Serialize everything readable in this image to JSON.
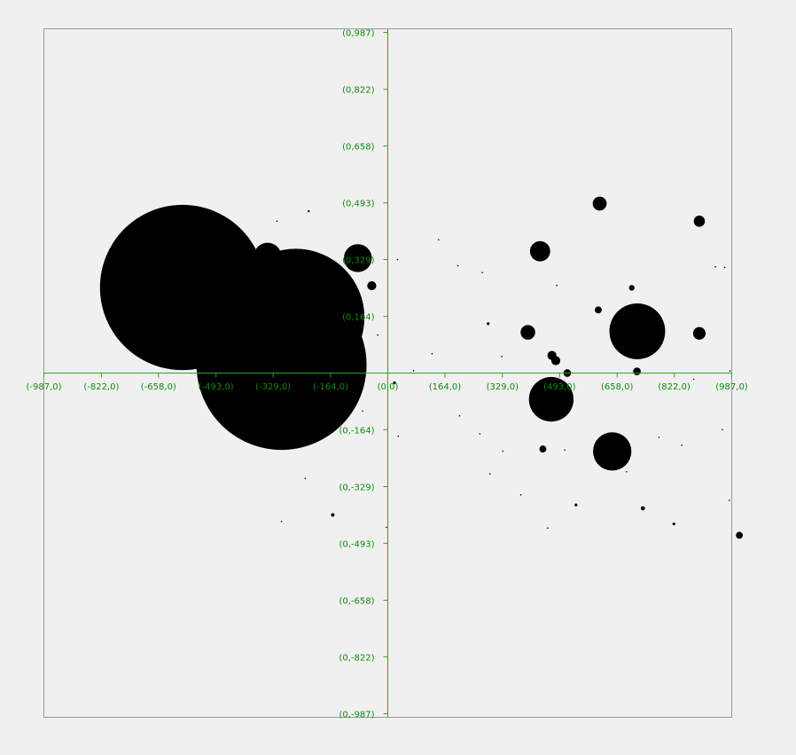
{
  "chart_data": {
    "type": "scatter",
    "subtype": "bubble",
    "title": "",
    "xlabel": "",
    "ylabel": "",
    "xlim": [
      -987,
      987
    ],
    "ylim": [
      -987,
      987
    ],
    "grid": false,
    "legend": "none",
    "colors": {
      "background": "#f0f0f0",
      "frame": "#999999",
      "axis": "#22aa22",
      "tick_label": "#118811",
      "marker": "#000000"
    },
    "x_tick_labels": [
      {
        "value": -987,
        "label": "(-987,0)"
      },
      {
        "value": -822,
        "label": "(-822,0)"
      },
      {
        "value": -658,
        "label": "(-658,0)"
      },
      {
        "value": -493,
        "label": "(-493,0)"
      },
      {
        "value": -329,
        "label": "(-329,0)"
      },
      {
        "value": -164,
        "label": "(-164,0)"
      },
      {
        "value": 0,
        "label": "(0,0)"
      },
      {
        "value": 164,
        "label": "(164,0)"
      },
      {
        "value": 329,
        "label": "(329,0)"
      },
      {
        "value": 493,
        "label": "(493,0)"
      },
      {
        "value": 658,
        "label": "(658,0)"
      },
      {
        "value": 822,
        "label": "(822,0)"
      },
      {
        "value": 987,
        "label": "(987,0)"
      }
    ],
    "y_tick_labels": [
      {
        "value": 987,
        "label": "(0,987)"
      },
      {
        "value": 822,
        "label": "(0,822)"
      },
      {
        "value": 658,
        "label": "(0,658)"
      },
      {
        "value": 493,
        "label": "(0,493)"
      },
      {
        "value": 329,
        "label": "(0,329)"
      },
      {
        "value": 164,
        "label": "(0,164)"
      },
      {
        "value": -164,
        "label": "(0,-164)"
      },
      {
        "value": -329,
        "label": "(0,-329)"
      },
      {
        "value": -493,
        "label": "(0,-493)"
      },
      {
        "value": -658,
        "label": "(0,-658)"
      },
      {
        "value": -822,
        "label": "(0,-822)"
      },
      {
        "value": -987,
        "label": "(0,-987)"
      }
    ],
    "points": [
      {
        "x": -589,
        "y": 248,
        "r": 237
      },
      {
        "x": -305,
        "y": 24,
        "r": 244
      },
      {
        "x": -264,
        "y": 161,
        "r": 197
      },
      {
        "x": -345,
        "y": 337,
        "r": 40
      },
      {
        "x": -86,
        "y": 333,
        "r": 40
      },
      {
        "x": -46,
        "y": 253,
        "r": 13
      },
      {
        "x": 437,
        "y": 353,
        "r": 29
      },
      {
        "x": 608,
        "y": 491,
        "r": 20
      },
      {
        "x": 716,
        "y": 121,
        "r": 80
      },
      {
        "x": 402,
        "y": 118,
        "r": 21
      },
      {
        "x": 471,
        "y": 51,
        "r": 13
      },
      {
        "x": 482,
        "y": 36,
        "r": 13
      },
      {
        "x": 515,
        "y": 0,
        "r": 11
      },
      {
        "x": 469,
        "y": -76,
        "r": 64
      },
      {
        "x": 644,
        "y": -227,
        "r": 55
      },
      {
        "x": 894,
        "y": 440,
        "r": 16
      },
      {
        "x": 897,
        "y": 440,
        "r": 9
      },
      {
        "x": 894,
        "y": 115,
        "r": 18
      },
      {
        "x": 700,
        "y": 247,
        "r": 8
      },
      {
        "x": 604,
        "y": 183,
        "r": 10
      },
      {
        "x": 715,
        "y": 5,
        "r": 11
      },
      {
        "x": 445,
        "y": -220,
        "r": 10
      },
      {
        "x": 1009,
        "y": -470,
        "r": 10
      },
      {
        "x": -158,
        "y": -411,
        "r": 5
      },
      {
        "x": 732,
        "y": -392,
        "r": 6
      },
      {
        "x": 540,
        "y": -382,
        "r": 4
      },
      {
        "x": 821,
        "y": -437,
        "r": 4
      },
      {
        "x": 288,
        "y": 143,
        "r": 4
      },
      {
        "x": 19,
        "y": -28,
        "r": 4
      },
      {
        "x": -227,
        "y": 469,
        "r": 3
      },
      {
        "x": -318,
        "y": 440,
        "r": 2
      },
      {
        "x": -72,
        "y": -110,
        "r": 2
      },
      {
        "x": -29,
        "y": 110,
        "r": 2
      },
      {
        "x": 28,
        "y": 329,
        "r": 2
      },
      {
        "x": 146,
        "y": 386,
        "r": 2
      },
      {
        "x": 201,
        "y": 311,
        "r": 2
      },
      {
        "x": 271,
        "y": 291,
        "r": 2
      },
      {
        "x": 485,
        "y": 254,
        "r": 2
      },
      {
        "x": 127,
        "y": 56,
        "r": 2
      },
      {
        "x": 327,
        "y": 48,
        "r": 2
      },
      {
        "x": 74,
        "y": 7,
        "r": 2
      },
      {
        "x": 30,
        "y": -183,
        "r": 2
      },
      {
        "x": 206,
        "y": -124,
        "r": 2
      },
      {
        "x": 264,
        "y": -176,
        "r": 2
      },
      {
        "x": 330,
        "y": -226,
        "r": 2
      },
      {
        "x": 293,
        "y": -292,
        "r": 2
      },
      {
        "x": 382,
        "y": -353,
        "r": 2
      },
      {
        "x": 459,
        "y": -449,
        "r": 2
      },
      {
        "x": 508,
        "y": -223,
        "r": 2
      },
      {
        "x": 685,
        "y": -286,
        "r": 2
      },
      {
        "x": 778,
        "y": -186,
        "r": 2
      },
      {
        "x": 844,
        "y": -209,
        "r": 2
      },
      {
        "x": 940,
        "y": 308,
        "r": 2
      },
      {
        "x": 967,
        "y": 306,
        "r": 2
      },
      {
        "x": 960,
        "y": -164,
        "r": 2
      },
      {
        "x": 980,
        "y": -369,
        "r": 2
      },
      {
        "x": 878,
        "y": -18,
        "r": 2
      },
      {
        "x": 982,
        "y": 6,
        "r": 2
      },
      {
        "x": -237,
        "y": -305,
        "r": 2
      },
      {
        "x": -305,
        "y": -430,
        "r": 2
      },
      {
        "x": -4,
        "y": -447,
        "r": 2
      }
    ]
  }
}
